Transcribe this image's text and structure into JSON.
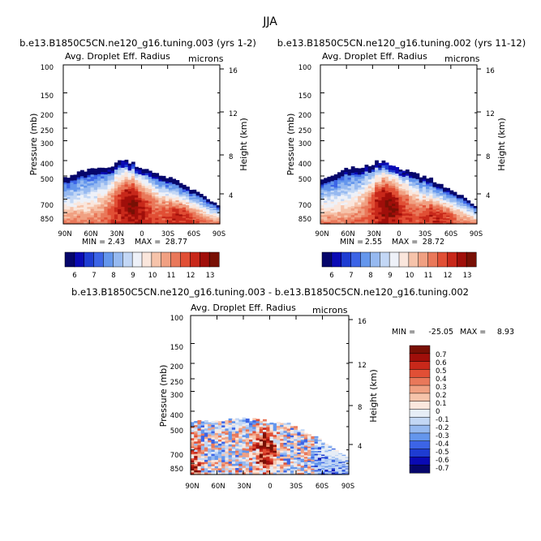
{
  "season": "JJA",
  "chart_data": [
    {
      "type": "heatmap",
      "title": "b.e13.B1850C5CN.ne120_g16.tuning.003 (yrs 1-2)",
      "subtitle": "Avg. Droplet Eff. Radius",
      "units": "microns",
      "ylabel": "Pressure (mb)",
      "ylabel_right": "Height (km)",
      "pressure_ticks": [
        "100",
        "150",
        "200",
        "250",
        "300",
        "400",
        "500",
        "700",
        "850"
      ],
      "height_ticks": [
        "16",
        "12",
        "8",
        "4"
      ],
      "lat_ticks": [
        "90N",
        "60N",
        "30N",
        "0",
        "30S",
        "60S",
        "90S"
      ],
      "min_label": "MIN =",
      "min_value": "2.43",
      "max_label": "MAX =",
      "max_value": "28.77",
      "colorbar": {
        "levels": [
          "6",
          "7",
          "8",
          "9",
          "10",
          "11",
          "12",
          "13"
        ]
      },
      "cloud_top_mb": [
        520,
        500,
        460,
        450,
        440,
        430,
        410,
        400,
        430,
        460,
        470,
        500,
        520,
        560,
        600,
        640,
        700,
        760
      ],
      "core_value": 13
    },
    {
      "type": "heatmap",
      "title": "b.e13.B1850C5CN.ne120_g16.tuning.002 (yrs 11-12)",
      "subtitle": "Avg. Droplet Eff. Radius",
      "units": "microns",
      "ylabel": "Pressure (mb)",
      "ylabel_right": "Height (km)",
      "pressure_ticks": [
        "100",
        "150",
        "200",
        "250",
        "300",
        "400",
        "500",
        "700",
        "850"
      ],
      "height_ticks": [
        "16",
        "12",
        "8",
        "4"
      ],
      "lat_ticks": [
        "90N",
        "60N",
        "30N",
        "0",
        "30S",
        "60S",
        "90S"
      ],
      "min_label": "MIN =",
      "min_value": "2.55",
      "max_label": "MAX =",
      "max_value": "28.72",
      "colorbar": {
        "levels": [
          "6",
          "7",
          "8",
          "9",
          "10",
          "11",
          "12",
          "13"
        ]
      },
      "cloud_top_mb": [
        520,
        500,
        460,
        450,
        440,
        430,
        410,
        400,
        430,
        460,
        470,
        500,
        520,
        560,
        600,
        640,
        700,
        760
      ],
      "core_value": 13
    },
    {
      "type": "heatmap",
      "title": "b.e13.B1850C5CN.ne120_g16.tuning.003 - b.e13.B1850C5CN.ne120_g16.tuning.002",
      "subtitle": "Avg. Droplet Eff. Radius",
      "units": "microns",
      "ylabel": "Pressure (mb)",
      "ylabel_right": "Height (km)",
      "pressure_ticks": [
        "100",
        "150",
        "200",
        "250",
        "300",
        "400",
        "500",
        "700",
        "850"
      ],
      "height_ticks": [
        "16",
        "12",
        "8",
        "4"
      ],
      "lat_ticks": [
        "90N",
        "60N",
        "30N",
        "0",
        "30S",
        "60S",
        "90S"
      ],
      "min_label": "MIN =",
      "min_value": "-25.05",
      "max_label": "MAX =",
      "max_value": "8.93",
      "colorbar": {
        "levels": [
          "0.7",
          "0.6",
          "0.5",
          "0.4",
          "0.3",
          "0.2",
          "0.1",
          "0",
          "-0.1",
          "-0.2",
          "-0.3",
          "-0.4",
          "-0.5",
          "-0.6",
          "-0.7"
        ]
      },
      "cloud_top_mb": [
        470,
        460,
        460,
        450,
        450,
        450,
        460,
        470,
        480,
        520,
        560,
        620,
        700,
        780
      ],
      "core_value": 0
    }
  ],
  "colors": {
    "full": [
      "#06066b",
      "#0a0ab4",
      "#1e3cd2",
      "#3c64e6",
      "#6496ec",
      "#96b9f0",
      "#c3d7f5",
      "#eef1f8",
      "#fae6dc",
      "#f6c3aa",
      "#f0a082",
      "#e9785a",
      "#e14f35",
      "#c8281a",
      "#a00f0a",
      "#781005"
    ],
    "diff": [
      "#06066b",
      "#0a0ab4",
      "#1e3cd2",
      "#3c64e6",
      "#6496ec",
      "#96b9f0",
      "#c3d7f5",
      "#e6edf6",
      "#fbe7dd",
      "#f6c3aa",
      "#f0a082",
      "#e9785a",
      "#e14f35",
      "#c8281a",
      "#a00f0a",
      "#781005"
    ]
  }
}
